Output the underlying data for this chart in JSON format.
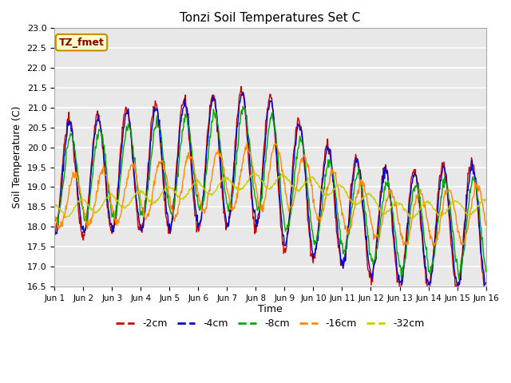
{
  "title": "Tonzi Soil Temperatures Set C",
  "xlabel": "Time",
  "ylabel": "Soil Temperature (C)",
  "ylim": [
    16.5,
    23.0
  ],
  "yticks": [
    16.5,
    17.0,
    17.5,
    18.0,
    18.5,
    19.0,
    19.5,
    20.0,
    20.5,
    21.0,
    21.5,
    22.0,
    22.5,
    23.0
  ],
  "xtick_labels": [
    "Jun 1",
    "Jun 2",
    "Jun 3",
    "Jun 4",
    "Jun 5",
    "Jun 6",
    "Jun 7",
    "Jun 8",
    "Jun 9",
    "Jun 10",
    "Jun 11",
    "Jun 12",
    "Jun 13",
    "Jun 14",
    "Jun 15",
    "Jun 16"
  ],
  "legend_labels": [
    "-2cm",
    "-4cm",
    "-8cm",
    "-16cm",
    "-32cm"
  ],
  "line_colors": [
    "#cc0000",
    "#0000cc",
    "#00aa00",
    "#ff8800",
    "#cccc00"
  ],
  "plot_bg_color": "#e8e8e8",
  "fig_bg_color": "#ffffff",
  "annotation_text": "TZ_fmet",
  "annotation_bg": "#ffffcc",
  "annotation_border": "#cc0000",
  "n_points": 720,
  "time_days": 15
}
